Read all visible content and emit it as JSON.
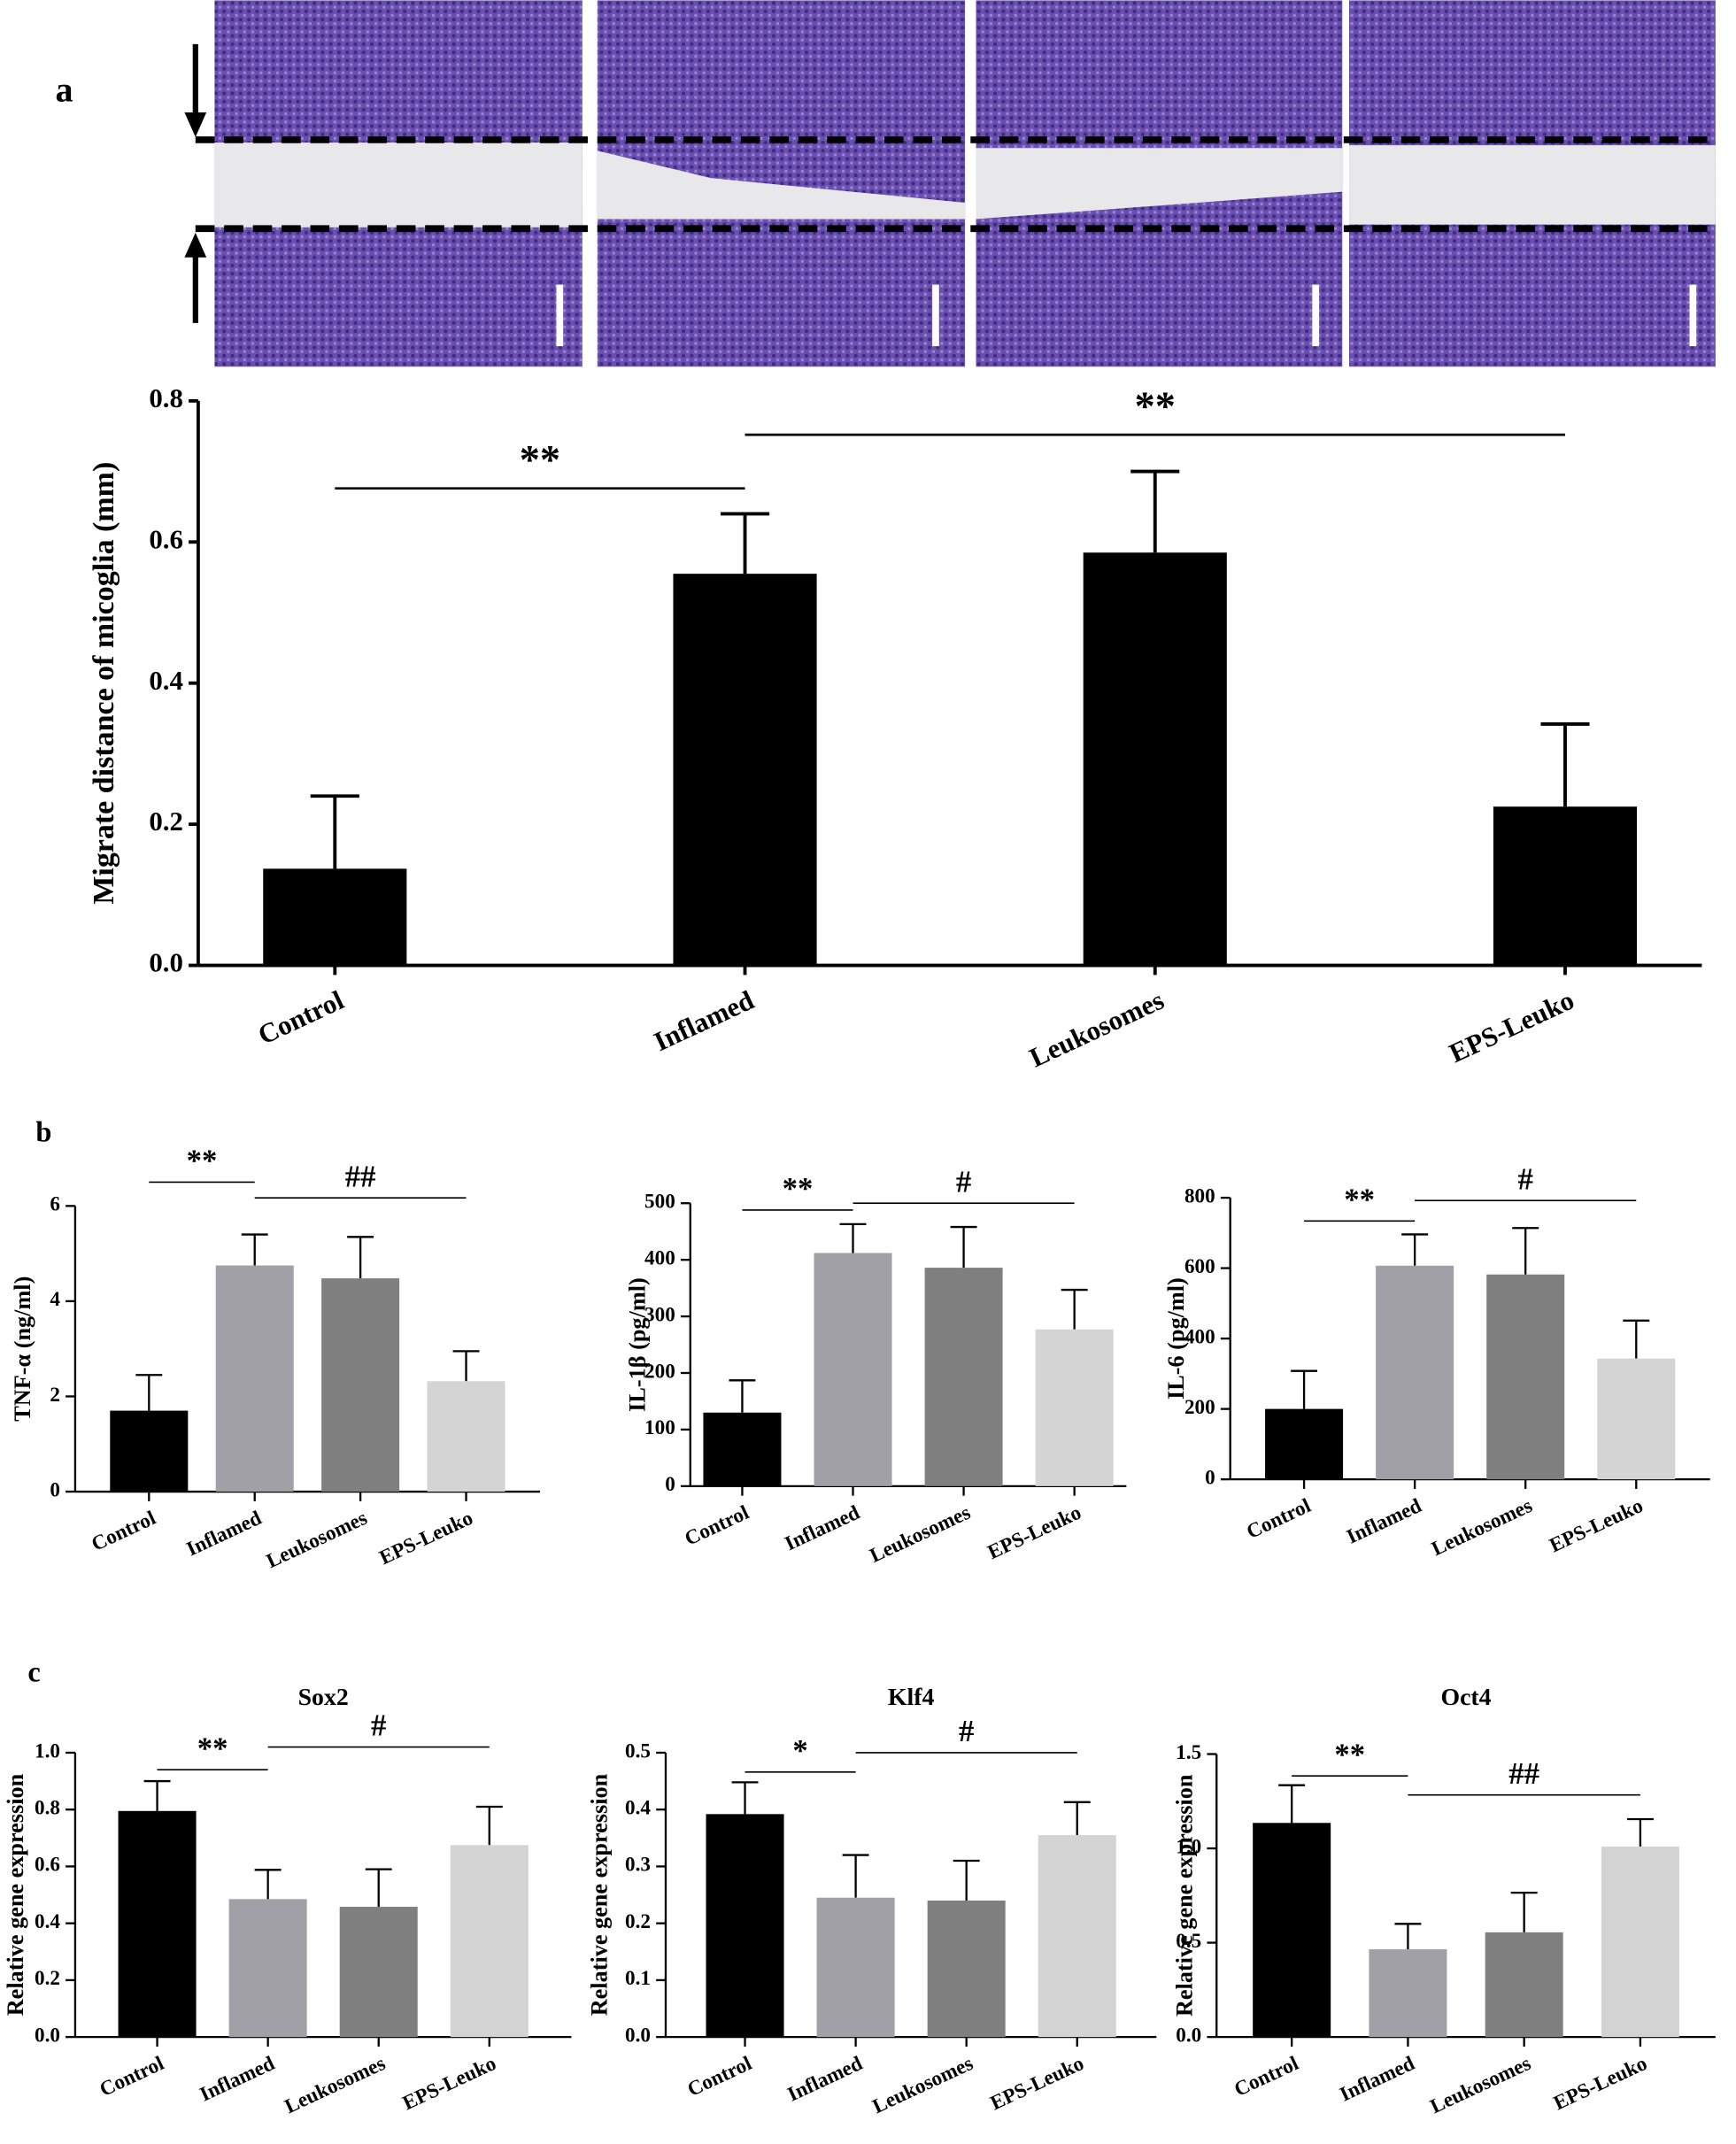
{
  "chart_data": [
    {
      "type": "bar",
      "panel": "a",
      "ylabel": "Migrate distance of micoglia (mm)",
      "categories": [
        "Control",
        "Inflamed",
        "Leukosomes",
        "EPS-Leuko"
      ],
      "values": [
        0.137,
        0.555,
        0.585,
        0.225
      ],
      "errors": [
        0.103,
        0.085,
        0.115,
        0.117
      ],
      "colors": [
        "#000000",
        "#000000",
        "#000000",
        "#000000"
      ],
      "ylim": [
        0,
        0.8
      ],
      "yticks": [
        {
          "value": 0,
          "label": "0.0"
        },
        0.2,
        0.4,
        0.6,
        0.8
      ],
      "annotations": [
        {
          "text": "**",
          "from": "Control",
          "to": "Inflamed",
          "y": 0.676
        },
        {
          "text": "**",
          "from": "Inflamed",
          "to": "EPS-Leuko",
          "y": 0.752
        }
      ]
    },
    {
      "type": "bar",
      "panel": "b",
      "ylabel": "TNF-α (ng/ml)",
      "categories": [
        "Control",
        "Inflamed",
        "Leukosomes",
        "EPS-Leuko"
      ],
      "values": [
        1.7,
        4.75,
        4.48,
        2.32
      ],
      "errors": [
        0.75,
        0.65,
        0.87,
        0.63
      ],
      "colors": [
        "#000000",
        "#a0a0a6",
        "#7f7f7f",
        "#d4d4d4"
      ],
      "ylim": [
        0,
        6
      ],
      "yticks": [
        0,
        2,
        4,
        6
      ],
      "annotations": [
        {
          "text": "**",
          "from": "Control",
          "to": "Inflamed",
          "y": 6.5
        },
        {
          "text": "##",
          "from": "Inflamed",
          "to": "EPS-Leuko",
          "y": 6.17
        }
      ]
    },
    {
      "type": "bar",
      "ylabel": "IL-1β (pg/ml)",
      "categories": [
        "Control",
        "Inflamed",
        "Leukosomes",
        "EPS-Leuko"
      ],
      "values": [
        130,
        412,
        386,
        277
      ],
      "errors": [
        57,
        51,
        72,
        70
      ],
      "colors": [
        "#000000",
        "#a0a0a6",
        "#7f7f7f",
        "#d4d4d4"
      ],
      "ylim": [
        0,
        500
      ],
      "yticks": [
        0,
        100,
        200,
        300,
        400,
        500
      ],
      "annotations": [
        {
          "text": "**",
          "from": "Control",
          "to": "Inflamed",
          "y": 488
        },
        {
          "text": "#",
          "from": "Inflamed",
          "to": "EPS-Leuko",
          "y": 500
        }
      ]
    },
    {
      "type": "bar",
      "ylabel": "IL-6 (pg/ml)",
      "categories": [
        "Control",
        "Inflamed",
        "Leukosomes",
        "EPS-Leuko"
      ],
      "values": [
        200,
        607,
        582,
        343
      ],
      "errors": [
        108,
        89,
        132,
        108
      ],
      "colors": [
        "#000000",
        "#a0a0a6",
        "#7f7f7f",
        "#d4d4d4"
      ],
      "ylim": [
        0,
        800
      ],
      "yticks": [
        0,
        200,
        400,
        600,
        800
      ],
      "annotations": [
        {
          "text": "**",
          "from": "Control",
          "to": "Inflamed",
          "y": 734
        },
        {
          "text": "#",
          "from": "Inflamed",
          "to": "EPS-Leuko",
          "y": 792
        }
      ]
    },
    {
      "type": "bar",
      "panel": "c",
      "title": "Sox2",
      "ylabel": "Relative gene expression",
      "categories": [
        "Control",
        "Inflamed",
        "Leukosomes",
        "EPS-Leuko"
      ],
      "values": [
        0.795,
        0.485,
        0.458,
        0.675
      ],
      "errors": [
        0.105,
        0.103,
        0.132,
        0.135
      ],
      "colors": [
        "#000000",
        "#a0a0a6",
        "#7f7f7f",
        "#d4d4d4"
      ],
      "ylim": [
        0,
        1.0
      ],
      "yticks": [
        {
          "value": 0,
          "label": "0.0"
        },
        0.2,
        0.4,
        0.6,
        0.8,
        {
          "value": 1.0,
          "label": "1.0"
        }
      ],
      "annotations": [
        {
          "text": "**",
          "from": "Control",
          "to": "Inflamed",
          "y": 0.94
        },
        {
          "text": "#",
          "from": "Inflamed",
          "to": "EPS-Leuko",
          "y": 1.02
        }
      ]
    },
    {
      "type": "bar",
      "title": "Klf4",
      "ylabel": "Relative gene expression",
      "categories": [
        "Control",
        "Inflamed",
        "Leukosomes",
        "EPS-Leuko"
      ],
      "values": [
        0.392,
        0.245,
        0.24,
        0.355
      ],
      "errors": [
        0.056,
        0.075,
        0.07,
        0.058
      ],
      "colors": [
        "#000000",
        "#a0a0a6",
        "#7f7f7f",
        "#d4d4d4"
      ],
      "ylim": [
        0,
        0.5
      ],
      "yticks": [
        {
          "value": 0,
          "label": "0.0"
        },
        0.1,
        0.2,
        0.3,
        0.4,
        0.5
      ],
      "annotations": [
        {
          "text": "*",
          "from": "Control",
          "to": "Inflamed",
          "y": 0.466
        },
        {
          "text": "#",
          "from": "Inflamed",
          "to": "EPS-Leuko",
          "y": 0.5
        }
      ]
    },
    {
      "type": "bar",
      "title": "Oct4",
      "ylabel": "Relative gene expression",
      "categories": [
        "Control",
        "Inflamed",
        "Leukosomes",
        "EPS-Leuko"
      ],
      "values": [
        1.135,
        0.465,
        0.555,
        1.01
      ],
      "errors": [
        0.2,
        0.135,
        0.21,
        0.145
      ],
      "colors": [
        "#000000",
        "#a0a0a6",
        "#7f7f7f",
        "#d4d4d4"
      ],
      "ylim": [
        0,
        1.5
      ],
      "yticks": [
        {
          "value": 0,
          "label": "0.0"
        },
        0.5,
        {
          "value": 1.0,
          "label": "1.0"
        },
        1.5
      ],
      "annotations": [
        {
          "text": "**",
          "from": "Control",
          "to": "Inflamed",
          "y": 1.384
        },
        {
          "text": "##",
          "from": "Inflamed",
          "to": "EPS-Leuko",
          "y": 1.283
        }
      ]
    }
  ]
}
